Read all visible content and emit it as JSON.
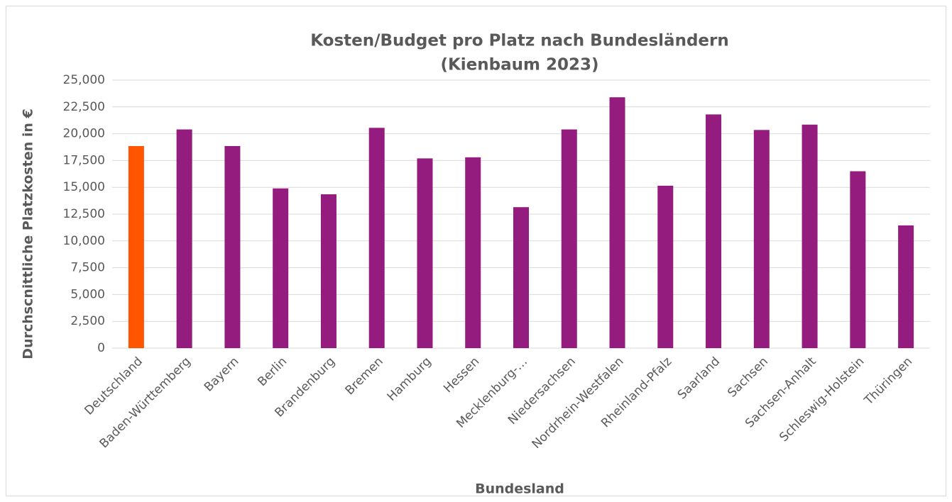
{
  "chart_data": {
    "type": "bar",
    "title": [
      "Kosten/Budget pro Platz nach Bundesländern",
      "(Kienbaum 2023)"
    ],
    "x_label": "Bundesland",
    "y_label": "Durchscnittliche Platzkosten in €",
    "categories": [
      "Deutschland",
      "Baden-Württemberg",
      "Bayern",
      "Berlin",
      "Brandenburg",
      "Bremen",
      "Hamburg",
      "Hessen",
      "Mecklenburg-…",
      "Niedersachsen",
      "Nordrhein-Westfalen",
      "Rheinland-Pfalz",
      "Saarland",
      "Sachsen",
      "Sachsen-Anhalt",
      "Schleswig-Holstein",
      "Thüringen"
    ],
    "values": [
      18850,
      20400,
      18850,
      14900,
      14350,
      20550,
      17700,
      17800,
      13150,
      20400,
      23400,
      15150,
      21800,
      20350,
      20850,
      16500,
      11450
    ],
    "colors": [
      "#ff5500",
      "#931c7e",
      "#931c7e",
      "#931c7e",
      "#931c7e",
      "#931c7e",
      "#931c7e",
      "#931c7e",
      "#931c7e",
      "#931c7e",
      "#931c7e",
      "#931c7e",
      "#931c7e",
      "#931c7e",
      "#931c7e",
      "#931c7e",
      "#931c7e"
    ],
    "ylim": [
      0,
      25000
    ],
    "yticks": [
      0,
      {
        "value": 2500,
        "label": "2,500"
      },
      {
        "value": 5000,
        "label": "5,000"
      },
      {
        "value": 7500,
        "label": "7,500"
      },
      {
        "value": 10000,
        "label": "10,000"
      },
      {
        "value": 12500,
        "label": "12,500"
      },
      {
        "value": 15000,
        "label": "15,000"
      },
      {
        "value": 17500,
        "label": "17,500"
      },
      {
        "value": 20000,
        "label": "20,000"
      },
      {
        "value": 22500,
        "label": "22,500"
      },
      {
        "value": 25000,
        "label": "25,000"
      }
    ],
    "grid": true
  }
}
